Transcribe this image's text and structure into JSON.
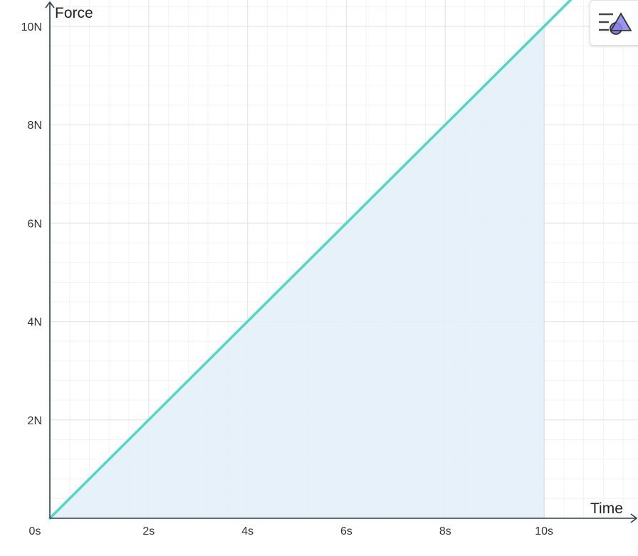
{
  "toolbar": {
    "icon": "shapes-menu-icon"
  },
  "colors": {
    "line": "#4fd8c4",
    "fill": "#e4f0fa",
    "axis": "#2b3d4f",
    "grid_major": "#e6e6e6",
    "grid_minor": "#f3f3f3",
    "icon_fill": "#8a84e8"
  },
  "chart_data": {
    "type": "area",
    "xlabel": "Time",
    "ylabel": "Force",
    "x_unit": "s",
    "y_unit": "N",
    "xlim": [
      0,
      11.9
    ],
    "ylim": [
      0,
      10.5
    ],
    "x_ticks": [
      "0s",
      "2s",
      "4s",
      "6s",
      "8s",
      "10s"
    ],
    "y_ticks": [
      "2N",
      "4N",
      "6N",
      "8N",
      "10N"
    ],
    "grid": true,
    "series": [
      {
        "line": {
          "slope": 1,
          "intercept": 0,
          "x_range": [
            0,
            11.9
          ]
        },
        "shaded": {
          "x_range": [
            0,
            10
          ]
        }
      }
    ]
  }
}
